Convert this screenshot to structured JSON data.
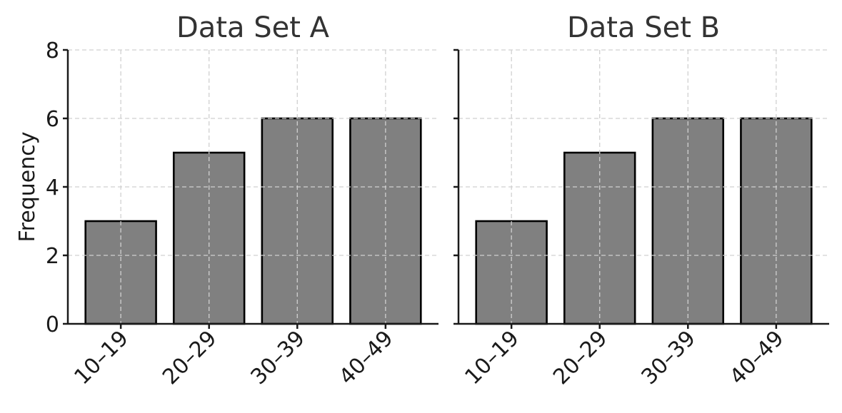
{
  "chart_data": [
    {
      "type": "bar",
      "title": "Data Set A",
      "categories": [
        "10–19",
        "20–29",
        "30–39",
        "40–49"
      ],
      "values": [
        3,
        5,
        6,
        6
      ],
      "xlabel": "",
      "ylabel": "Frequency",
      "ylim": [
        0,
        8
      ],
      "yticks": [
        "0",
        "2",
        "4",
        "6",
        "8"
      ],
      "grid": true,
      "bar_color": "#808080",
      "edge_color": "#000000"
    },
    {
      "type": "bar",
      "title": "Data Set B",
      "categories": [
        "10–19",
        "20–29",
        "30–39",
        "40–49"
      ],
      "values": [
        3,
        5,
        6,
        6
      ],
      "xlabel": "",
      "ylabel": "",
      "ylim": [
        0,
        8
      ],
      "yticks": [],
      "grid": true,
      "bar_color": "#808080",
      "edge_color": "#000000"
    }
  ]
}
